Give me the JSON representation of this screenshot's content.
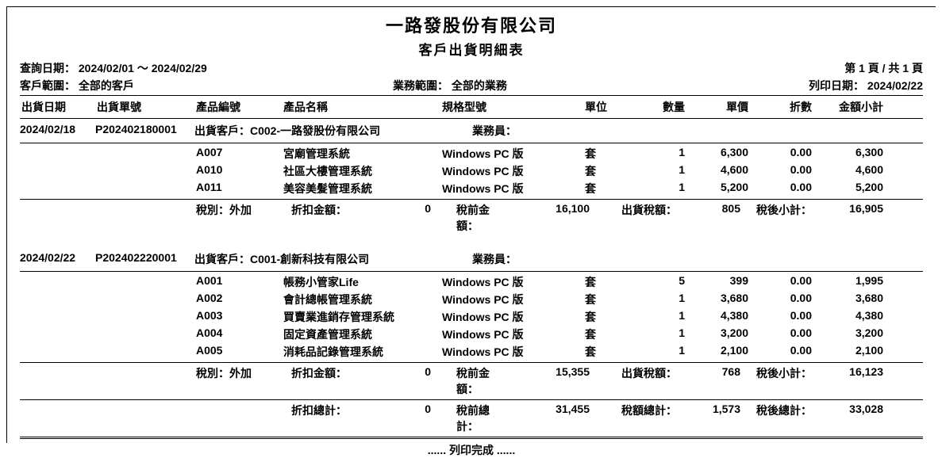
{
  "company_name": "一路發股份有限公司",
  "report_title": "客戶出貨明細表",
  "query_label": "查詢日期：",
  "query_range": "2024/02/01 ～ 2024/02/29",
  "customer_scope_label": "客戶範圍：",
  "customer_scope": "全部的客戶",
  "sales_scope_label": "業務範圍：",
  "sales_scope": "全部的業務",
  "page_label": "第 1 頁 / 共 1 頁",
  "print_date_label": "列印日期：",
  "print_date": "2024/02/22",
  "headers": {
    "ship_date": "出貨日期",
    "ship_no": "出貨單號",
    "product_code": "產品編號",
    "product_name": "產品名稱",
    "spec": "規格型號",
    "unit": "單位",
    "qty": "數量",
    "price": "單價",
    "discount": "折數",
    "subtotal": "金額小計"
  },
  "labels": {
    "ship_customer": "出貨客戶：",
    "sales_rep": "業務員：",
    "tax_type": "稅別：外加",
    "discount_amount": "折扣金額：",
    "pretax_amount": "稅前金額：",
    "ship_tax": "出貨稅額：",
    "posttax_subtotal": "稅後小計：",
    "discount_total": "折扣總計：",
    "pretax_total": "稅前總計：",
    "tax_total": "稅額總計：",
    "posttax_total": "稅後總計："
  },
  "groups": [
    {
      "ship_date": "2024/02/18",
      "ship_no": "P202402180001",
      "customer": "C002-一路發股份有限公司",
      "sales_rep": "",
      "lines": [
        {
          "code": "A007",
          "name": "宮廟管理系統",
          "spec": "Windows PC 版",
          "unit": "套",
          "qty": "1",
          "price": "6,300",
          "disc": "0.00",
          "sub": "6,300"
        },
        {
          "code": "A010",
          "name": "社區大樓管理系統",
          "spec": "Windows PC 版",
          "unit": "套",
          "qty": "1",
          "price": "4,600",
          "disc": "0.00",
          "sub": "4,600"
        },
        {
          "code": "A011",
          "name": "美容美髮管理系統",
          "spec": "Windows PC 版",
          "unit": "套",
          "qty": "1",
          "price": "5,200",
          "disc": "0.00",
          "sub": "5,200"
        }
      ],
      "discount_amount": "0",
      "pretax": "16,100",
      "tax": "805",
      "posttax": "16,905"
    },
    {
      "ship_date": "2024/02/22",
      "ship_no": "P202402220001",
      "customer": "C001-創新科技有限公司",
      "sales_rep": "",
      "lines": [
        {
          "code": "A001",
          "name": "帳務小管家Life",
          "spec": "Windows PC 版",
          "unit": "套",
          "qty": "5",
          "price": "399",
          "disc": "0.00",
          "sub": "1,995"
        },
        {
          "code": "A002",
          "name": "會計總帳管理系統",
          "spec": "Windows PC 版",
          "unit": "套",
          "qty": "1",
          "price": "3,680",
          "disc": "0.00",
          "sub": "3,680"
        },
        {
          "code": "A003",
          "name": "買賣業進銷存管理系統",
          "spec": "Windows PC 版",
          "unit": "套",
          "qty": "1",
          "price": "4,380",
          "disc": "0.00",
          "sub": "4,380"
        },
        {
          "code": "A004",
          "name": "固定資產管理系統",
          "spec": "Windows PC 版",
          "unit": "套",
          "qty": "1",
          "price": "3,200",
          "disc": "0.00",
          "sub": "3,200"
        },
        {
          "code": "A005",
          "name": "消耗品記錄管理系統",
          "spec": "Windows PC 版",
          "unit": "套",
          "qty": "1",
          "price": "2,100",
          "disc": "0.00",
          "sub": "2,100"
        }
      ],
      "discount_amount": "0",
      "pretax": "15,355",
      "tax": "768",
      "posttax": "16,123"
    }
  ],
  "totals": {
    "discount": "0",
    "pretax": "31,455",
    "tax": "1,573",
    "posttax": "33,028"
  },
  "footer": "......  列印完成  ......"
}
